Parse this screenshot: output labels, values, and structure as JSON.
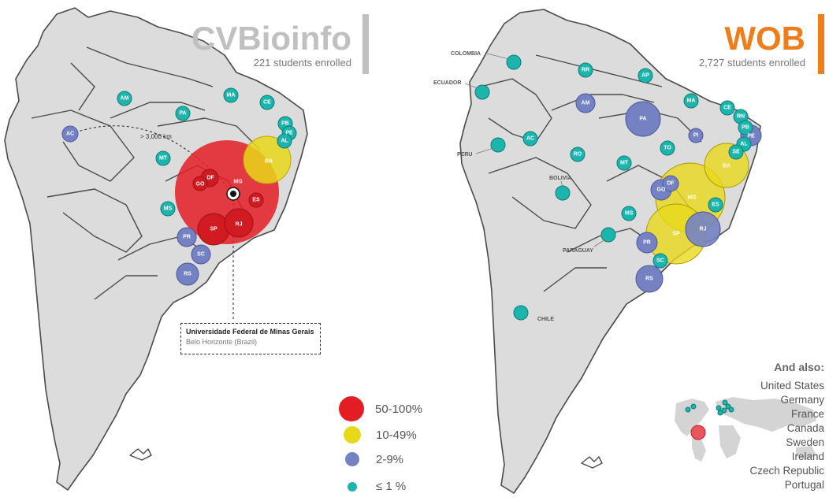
{
  "left_panel": {
    "title": "CVBioinfo",
    "subtitle": "221 students enrolled",
    "title_color": "#c0c0c0",
    "distance_label": "> 3,000 km",
    "callout_line1": "Universidade Federal de Minas Gerais",
    "callout_line2": "Belo Horizonte (Brazil)",
    "bubbles": [
      {
        "label": "AM",
        "category": "le1"
      },
      {
        "label": "PA",
        "category": "le1"
      },
      {
        "label": "MA",
        "category": "le1"
      },
      {
        "label": "CE",
        "category": "le1"
      },
      {
        "label": "PB",
        "category": "le1"
      },
      {
        "label": "PE",
        "category": "le1"
      },
      {
        "label": "AL",
        "category": "le1"
      },
      {
        "label": "AC",
        "category": "2-9"
      },
      {
        "label": "MT",
        "category": "le1"
      },
      {
        "label": "BA",
        "category": "10-49"
      },
      {
        "label": "MG",
        "category": "50-100"
      },
      {
        "label": "DF",
        "category": "le1"
      },
      {
        "label": "GO",
        "category": "le1"
      },
      {
        "label": "ES",
        "category": "le1"
      },
      {
        "label": "MS",
        "category": "le1"
      },
      {
        "label": "SP",
        "category": "2-9"
      },
      {
        "label": "RJ",
        "category": "2-9"
      },
      {
        "label": "PR",
        "category": "2-9"
      },
      {
        "label": "SC",
        "category": "2-9"
      },
      {
        "label": "RS",
        "category": "2-9"
      }
    ]
  },
  "right_panel": {
    "title": "WOB",
    "subtitle": "2,727 students enrolled",
    "title_color": "#f07c1a",
    "countries": [
      "COLOMBIA",
      "ECUADOR",
      "PERU",
      "BOLIVIA",
      "PARAGUAY",
      "CHILE"
    ],
    "bubbles": [
      {
        "label": "RR",
        "category": "le1"
      },
      {
        "label": "AP",
        "category": "le1"
      },
      {
        "label": "AM",
        "category": "2-9"
      },
      {
        "label": "PA",
        "category": "2-9"
      },
      {
        "label": "MA",
        "category": "le1"
      },
      {
        "label": "CE",
        "category": "le1"
      },
      {
        "label": "RN",
        "category": "le1"
      },
      {
        "label": "PB",
        "category": "le1"
      },
      {
        "label": "PE",
        "category": "2-9"
      },
      {
        "label": "AL",
        "category": "le1"
      },
      {
        "label": "SE",
        "category": "le1"
      },
      {
        "label": "PI",
        "category": "2-9"
      },
      {
        "label": "AC",
        "category": "le1"
      },
      {
        "label": "RO",
        "category": "le1"
      },
      {
        "label": "TO",
        "category": "le1"
      },
      {
        "label": "MT",
        "category": "le1"
      },
      {
        "label": "BA",
        "category": "10-49"
      },
      {
        "label": "GO",
        "category": "2-9"
      },
      {
        "label": "DF",
        "category": "2-9"
      },
      {
        "label": "MG",
        "category": "10-49"
      },
      {
        "label": "ES",
        "category": "le1"
      },
      {
        "label": "MS",
        "category": "le1"
      },
      {
        "label": "SP",
        "category": "10-49"
      },
      {
        "label": "RJ",
        "category": "2-9"
      },
      {
        "label": "PR",
        "category": "2-9"
      },
      {
        "label": "SC",
        "category": "le1"
      },
      {
        "label": "RS",
        "category": "2-9"
      }
    ],
    "also_title": "And also:",
    "also_list": [
      "United States",
      "Germany",
      "France",
      "Canada",
      "Sweden",
      "Ireland",
      "Czech Republic",
      "Portugal"
    ]
  },
  "legend": [
    {
      "key": "50-100",
      "label": "50-100%",
      "color": "#e41c24"
    },
    {
      "key": "10-49",
      "label": "10-49%",
      "color": "#e8d81a"
    },
    {
      "key": "2-9",
      "label": "2-9%",
      "color": "#7482c4"
    },
    {
      "key": "le1",
      "label": "≤ 1 %",
      "color": "#1cb5ae"
    }
  ]
}
